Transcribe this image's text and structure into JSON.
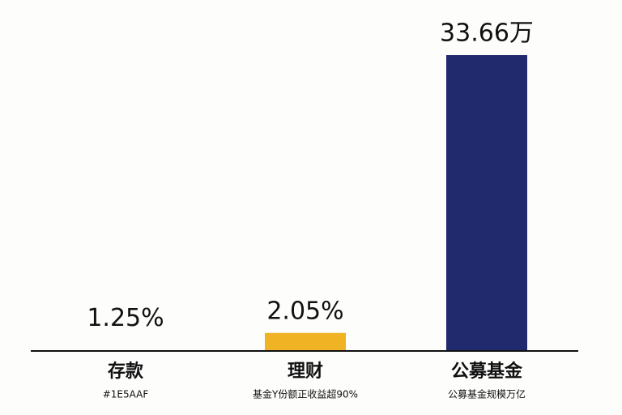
{
  "chart_data": {
    "type": "bar",
    "categories": [
      "存款",
      "理财",
      "公募基金"
    ],
    "subtitles": [
      "#1E5AAF",
      "基金Y份额正收益超90%",
      "公募基金规模万亿"
    ],
    "values": [
      1.25,
      2.05,
      33.66
    ],
    "value_labels": [
      "1.25%",
      "2.05%",
      "33.66万"
    ],
    "colors": [
      "#fdfdfc",
      "#f0b323",
      "#222a6e"
    ],
    "ylim": [
      0,
      33.66
    ]
  }
}
